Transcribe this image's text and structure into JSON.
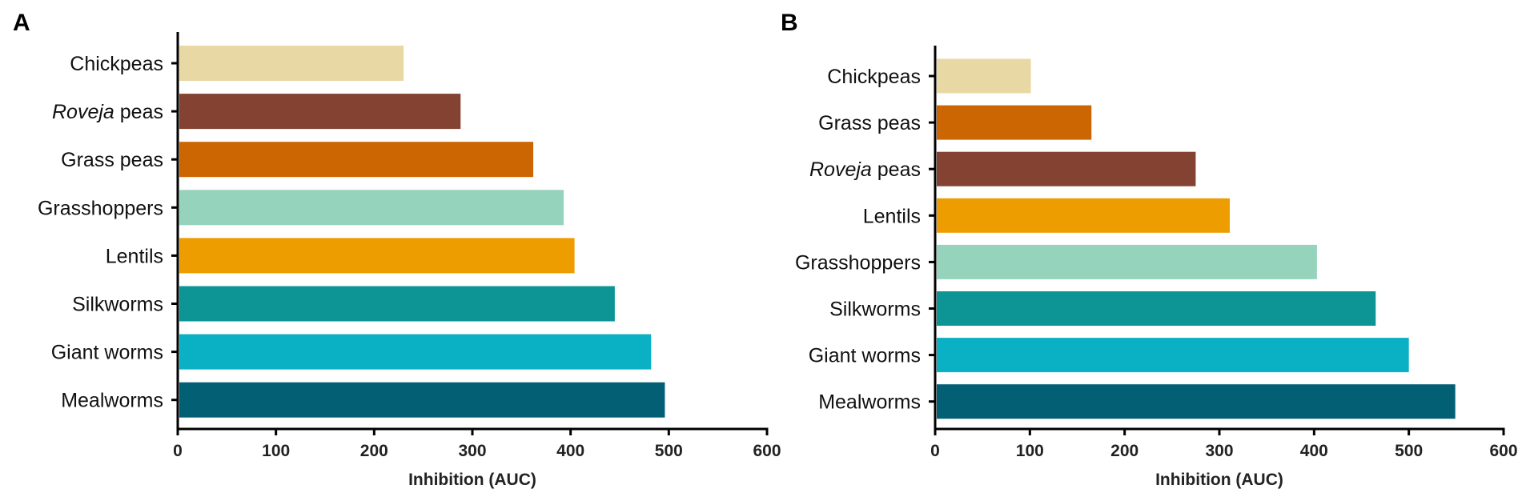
{
  "chart_data": [
    {
      "panel": "A",
      "type": "bar",
      "orientation": "horizontal",
      "title": "",
      "xlabel": "Inhibition (AUC)",
      "ylabel": "",
      "xlim": [
        0,
        600
      ],
      "xticks": [
        0,
        100,
        200,
        300,
        400,
        500,
        600
      ],
      "grid": false,
      "bars": [
        {
          "label": "Chickpeas",
          "label_parts": [
            {
              "text": "Chickpeas",
              "italic": false
            }
          ],
          "value": 230,
          "color": "#E8D8A4"
        },
        {
          "label": "Roveja peas",
          "label_parts": [
            {
              "text": "Roveja",
              "italic": true
            },
            {
              "text": " peas",
              "italic": false
            }
          ],
          "value": 288,
          "color": "#834232"
        },
        {
          "label": "Grass peas",
          "label_parts": [
            {
              "text": "Grass peas",
              "italic": false
            }
          ],
          "value": 362,
          "color": "#CC6603"
        },
        {
          "label": "Grasshoppers",
          "label_parts": [
            {
              "text": "Grasshoppers",
              "italic": false
            }
          ],
          "value": 393,
          "color": "#96D3BD"
        },
        {
          "label": "Lentils",
          "label_parts": [
            {
              "text": "Lentils",
              "italic": false
            }
          ],
          "value": 404,
          "color": "#EE9D01"
        },
        {
          "label": "Silkworms",
          "label_parts": [
            {
              "text": "Silkworms",
              "italic": false
            }
          ],
          "value": 445,
          "color": "#0D9494"
        },
        {
          "label": "Giant worms",
          "label_parts": [
            {
              "text": "Giant worms",
              "italic": false
            }
          ],
          "value": 482,
          "color": "#0AB0C3"
        },
        {
          "label": "Mealworms",
          "label_parts": [
            {
              "text": "Mealworms",
              "italic": false
            }
          ],
          "value": 496,
          "color": "#035F74"
        }
      ]
    },
    {
      "panel": "B",
      "type": "bar",
      "orientation": "horizontal",
      "title": "",
      "xlabel": "Inhibition (AUC)",
      "ylabel": "",
      "xlim": [
        0,
        600
      ],
      "xticks": [
        0,
        100,
        200,
        300,
        400,
        500,
        600
      ],
      "grid": false,
      "bars": [
        {
          "label": "Chickpeas",
          "label_parts": [
            {
              "text": "Chickpeas",
              "italic": false
            }
          ],
          "value": 101,
          "color": "#E8D8A4"
        },
        {
          "label": "Grass peas",
          "label_parts": [
            {
              "text": "Grass peas",
              "italic": false
            }
          ],
          "value": 165,
          "color": "#CC6603"
        },
        {
          "label": "Roveja peas",
          "label_parts": [
            {
              "text": "Roveja",
              "italic": true
            },
            {
              "text": " peas",
              "italic": false
            }
          ],
          "value": 275,
          "color": "#834232"
        },
        {
          "label": "Lentils",
          "label_parts": [
            {
              "text": "Lentils",
              "italic": false
            }
          ],
          "value": 311,
          "color": "#EE9D01"
        },
        {
          "label": "Grasshoppers",
          "label_parts": [
            {
              "text": "Grasshoppers",
              "italic": false
            }
          ],
          "value": 403,
          "color": "#96D3BD"
        },
        {
          "label": "Silkworms",
          "label_parts": [
            {
              "text": "Silkworms",
              "italic": false
            }
          ],
          "value": 465,
          "color": "#0D9494"
        },
        {
          "label": "Giant worms",
          "label_parts": [
            {
              "text": "Giant worms",
              "italic": false
            }
          ],
          "value": 500,
          "color": "#0AB0C3"
        },
        {
          "label": "Mealworms",
          "label_parts": [
            {
              "text": "Mealworms",
              "italic": false
            }
          ],
          "value": 549,
          "color": "#035F74"
        }
      ]
    }
  ]
}
